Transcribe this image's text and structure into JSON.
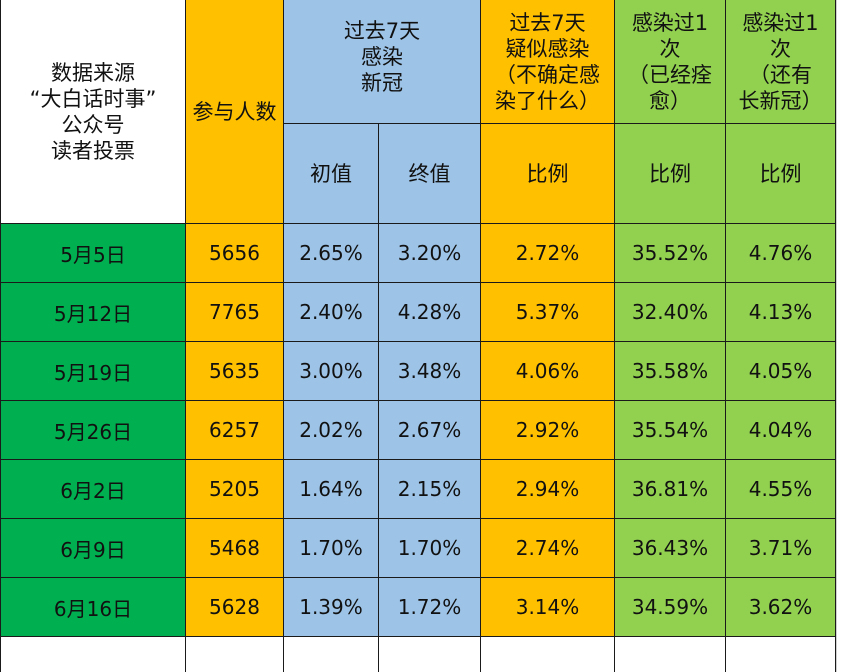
{
  "header": {
    "source": "数据来源\n“大白话时事”\n公众号\n读者投票",
    "participants": "参与人数",
    "past7": "过去7天\n感染\n新冠",
    "suspected": "过去7天\n疑似感染\n（不确定感\n染了什么）",
    "recovered": "感染过1\n次\n（已经痊\n愈）",
    "long_covid": "感染过1\n次\n（还有\n长新冠）",
    "initial": "初值",
    "final": "终值",
    "ratio_suspected": "比例",
    "ratio_recovered": "比例",
    "ratio_long": "比例"
  },
  "rows": [
    {
      "date": "5月5日",
      "participants": "5656",
      "initial": "2.65%",
      "final": "3.20%",
      "suspected": "2.72%",
      "recovered": "35.52%",
      "long": "4.76%"
    },
    {
      "date": "5月12日",
      "participants": "7765",
      "initial": "2.40%",
      "final": "4.28%",
      "suspected": "5.37%",
      "recovered": "32.40%",
      "long": "4.13%"
    },
    {
      "date": "5月19日",
      "participants": "5635",
      "initial": "3.00%",
      "final": "3.48%",
      "suspected": "4.06%",
      "recovered": "35.58%",
      "long": "4.05%"
    },
    {
      "date": "5月26日",
      "participants": "6257",
      "initial": "2.02%",
      "final": "2.67%",
      "suspected": "2.92%",
      "recovered": "35.54%",
      "long": "4.04%"
    },
    {
      "date": "6月2日",
      "participants": "5205",
      "initial": "1.64%",
      "final": "2.15%",
      "suspected": "2.94%",
      "recovered": "36.81%",
      "long": "4.55%"
    },
    {
      "date": "6月9日",
      "participants": "5468",
      "initial": "1.70%",
      "final": "1.70%",
      "suspected": "2.74%",
      "recovered": "36.43%",
      "long": "3.71%"
    },
    {
      "date": "6月16日",
      "participants": "5628",
      "initial": "1.39%",
      "final": "1.72%",
      "suspected": "3.14%",
      "recovered": "34.59%",
      "long": "3.62%"
    }
  ],
  "colors": {
    "orange": "#ffc000",
    "blue": "#9dc3e6",
    "green": "#92d050",
    "date_green": "#00b050"
  }
}
